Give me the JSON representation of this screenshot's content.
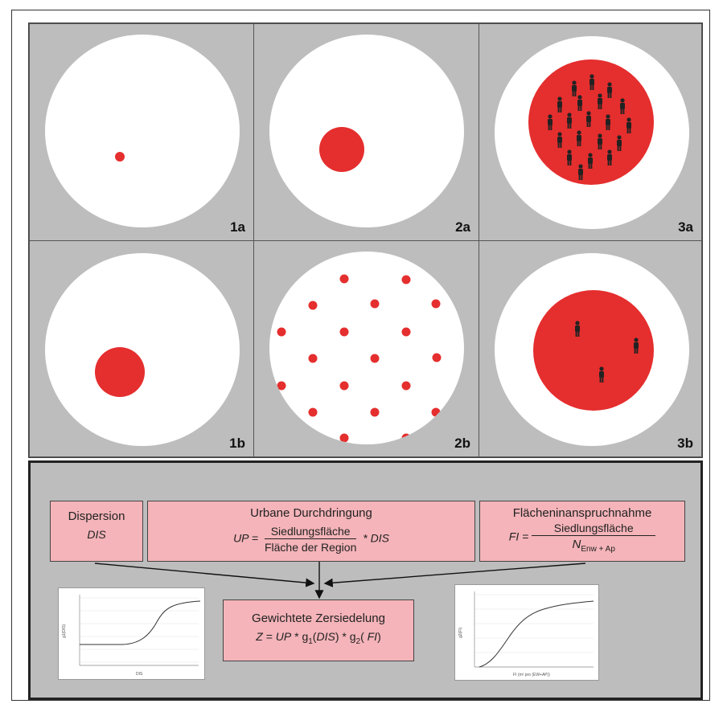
{
  "panels": {
    "p1a": "1a",
    "p2a": "2a",
    "p3a": "3a",
    "p1b": "1b",
    "p2b": "2b",
    "p3b": "3b"
  },
  "colors": {
    "settlement": "#e52e2e",
    "region": "#ffffff",
    "panel_bg": "#bdbdbd",
    "box_bg": "#f4b4b9"
  },
  "icons": {
    "person": "person-icon"
  },
  "formula": {
    "dispersion": {
      "title": "Dispersion",
      "abbr": "DIS"
    },
    "urban": {
      "title": "Urbane Durchdringung",
      "lhs": "UP =",
      "numerator": "Siedlungsfläche",
      "denominator": "Fläche der Region",
      "tail": "* DIS"
    },
    "land": {
      "title": "Flächeninanspruchnahme",
      "lhs": "FI =",
      "numerator": "Siedlungsfläche",
      "den_main": "N",
      "den_sub": "Enw + Ap"
    },
    "weighted": {
      "title": "Gewichtete Zersiedelung",
      "z": "Z",
      "eq": " = ",
      "up": "UP",
      "star1": " * g",
      "sub1": "1",
      "dis": "DIS",
      "star2": " * g",
      "sub2": "2",
      "fi": "FI"
    },
    "graph1": {
      "xlabel": "DIS",
      "ylabel": "g1(DIS)"
    },
    "graph2": {
      "xlabel": "FI (m² pro (EW+AP))",
      "ylabel": "g2(FI)"
    }
  }
}
